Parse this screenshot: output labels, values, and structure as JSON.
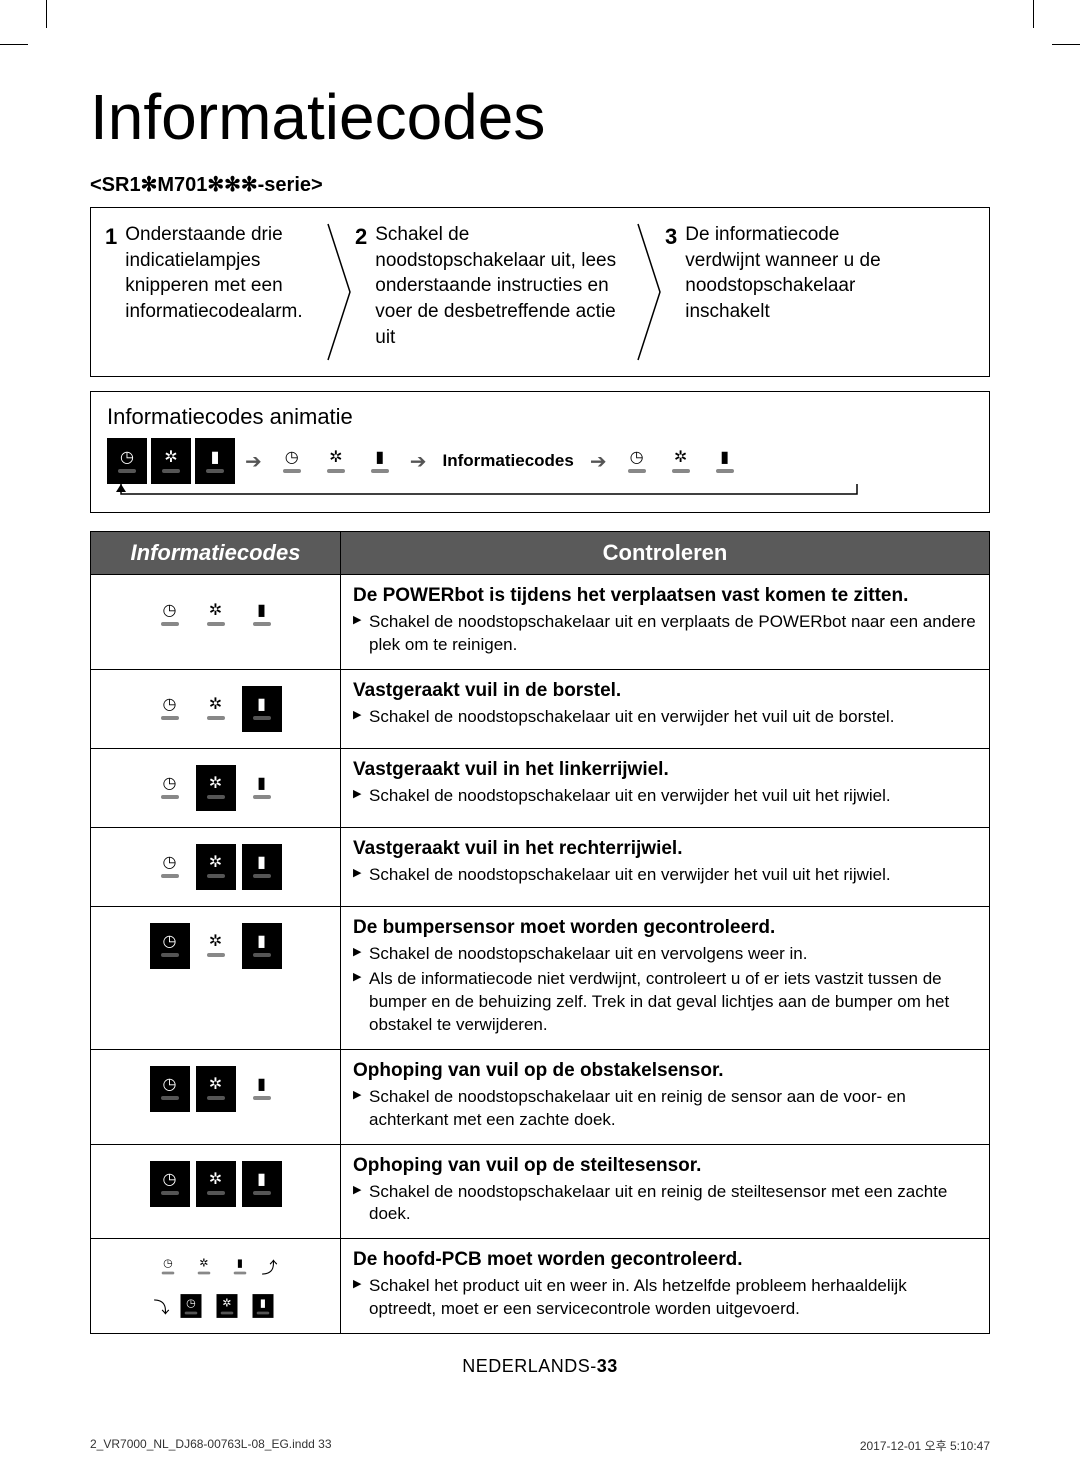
{
  "title": "Informatiecodes",
  "series": "<SR1✻M701✻✻✻-serie>",
  "steps": [
    {
      "num": "1",
      "text": "Onderstaande drie indicatielampjes knipperen met een informatiecodealarm."
    },
    {
      "num": "2",
      "text": "Schakel de noodstopschakelaar uit, lees onderstaande instructies en voer de desbetreffende actie uit"
    },
    {
      "num": "3",
      "text": "De informatiecode verdwijnt wanneer u de noodstopschakelaar inschakelt"
    }
  ],
  "anim_title_a": "Informatiecodes ",
  "anim_title_b": "animatie",
  "anim_center_label": "Informatiecodes",
  "table": {
    "head_left": "Informatiecodes",
    "head_right": "Controleren",
    "rows": [
      {
        "pattern": [
          "clock-off",
          "fan-off",
          "batt-off"
        ],
        "title": "De POWERbot is tijdens het verplaatsen vast komen te zitten.",
        "items": [
          "Schakel de noodstopschakelaar uit en verplaats de POWERbot naar een andere plek om te reinigen."
        ]
      },
      {
        "pattern": [
          "clock-off",
          "fan-off",
          "batt-on"
        ],
        "title": "Vastgeraakt vuil in de borstel.",
        "items": [
          "Schakel de noodstopschakelaar uit en verwijder het vuil uit de borstel."
        ]
      },
      {
        "pattern": [
          "clock-off",
          "fan-on",
          "batt-off"
        ],
        "title": "Vastgeraakt vuil in het linkerrijwiel.",
        "items": [
          "Schakel de noodstopschakelaar uit en verwijder het vuil uit het rijwiel."
        ]
      },
      {
        "pattern": [
          "clock-off",
          "fan-on",
          "batt-on"
        ],
        "title": "Vastgeraakt vuil in het rechterrijwiel.",
        "items": [
          "Schakel de noodstopschakelaar uit en verwijder het vuil uit het rijwiel."
        ]
      },
      {
        "pattern": [
          "clock-on",
          "fan-off",
          "batt-on"
        ],
        "title": "De bumpersensor moet worden gecontroleerd.",
        "items": [
          "Schakel de noodstopschakelaar uit en vervolgens weer in.",
          "Als de informatiecode niet verdwijnt, controleert u of er iets vastzit tussen de bumper en de behuizing zelf. Trek in dat geval lichtjes aan de bumper om het obstakel te verwijderen."
        ]
      },
      {
        "pattern": [
          "clock-on",
          "fan-on",
          "batt-off"
        ],
        "title": "Ophoping van vuil op de obstakelsensor.",
        "items": [
          "Schakel de noodstopschakelaar uit en reinig de sensor aan de voor- en achterkant met een zachte doek."
        ]
      },
      {
        "pattern": [
          "clock-on",
          "fan-on",
          "batt-on"
        ],
        "title": "Ophoping van vuil op de steiltesensor.",
        "items": [
          "Schakel de noodstopschakelaar uit en reinig de steiltesensor met een zachte doek."
        ]
      },
      {
        "pattern": "pcb",
        "title": "De hoofd-PCB moet worden gecontroleerd.",
        "items": [
          "Schakel het product uit en weer in. Als hetzelfde probleem herhaaldelijk optreedt, moet er een servicecontrole worden uitgevoerd."
        ]
      }
    ]
  },
  "footer_lang": "NEDERLANDS-",
  "footer_num": "33",
  "footer_file": "2_VR7000_NL_DJ68-00763L-08_EG.indd   33",
  "footer_time": "2017-12-01   오후 5:10:47"
}
